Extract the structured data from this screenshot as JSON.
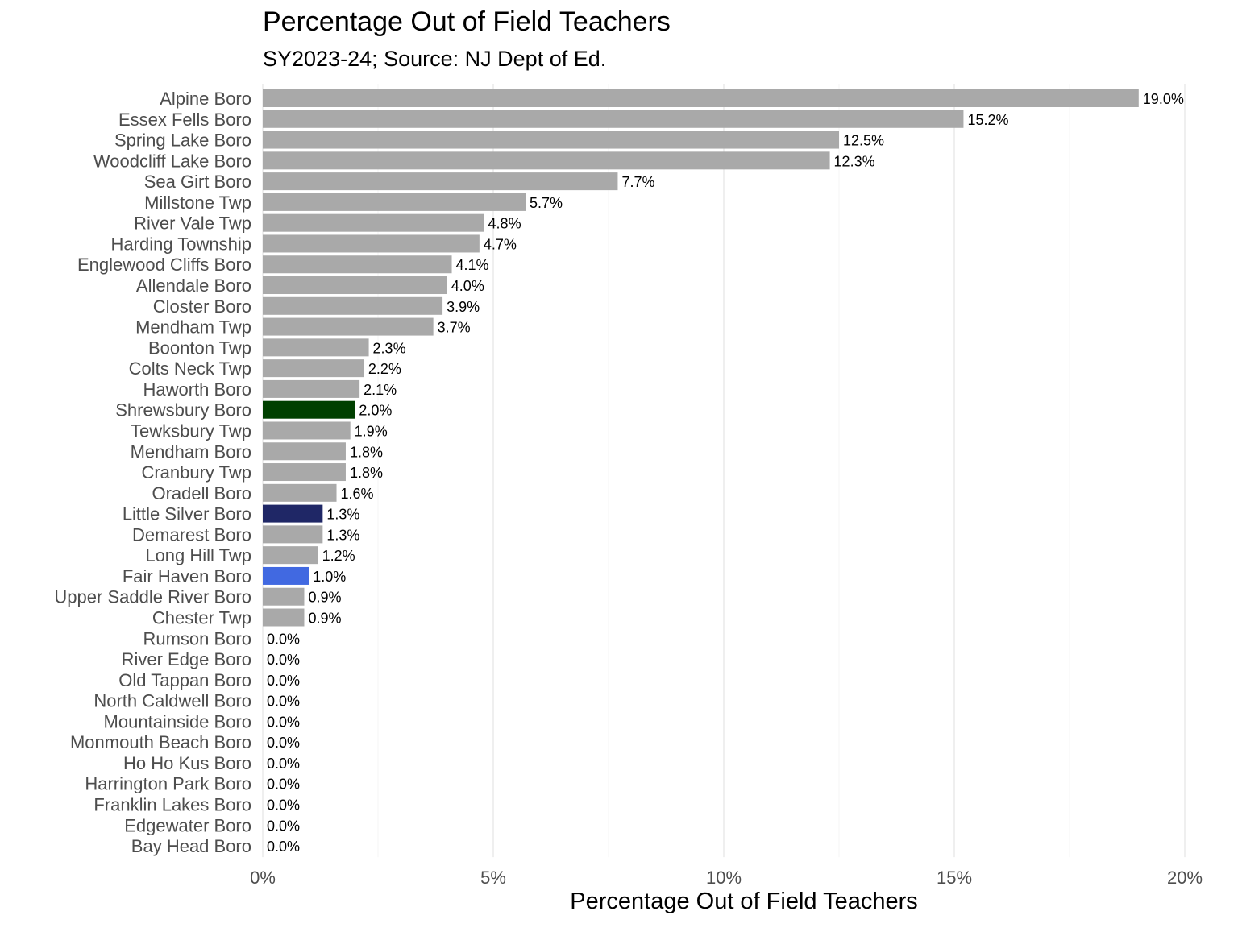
{
  "title": "Percentage Out of Field Teachers",
  "subtitle": "SY2023-24; Source: NJ Dept of Ed.",
  "colors": {
    "default_bar": "#a9a9a9",
    "gridline": "#ebebeb",
    "highlight_shrewsbury": "#004000",
    "highlight_little_silver": "#1f2766",
    "highlight_fair_haven": "#4169e1"
  },
  "chart_data": {
    "type": "bar",
    "orientation": "horizontal",
    "title": "Percentage Out of Field Teachers",
    "subtitle": "SY2023-24; Source: NJ Dept of Ed.",
    "xlabel": "Percentage Out of Field Teachers",
    "ylabel": "",
    "xlim": [
      0,
      20
    ],
    "x_ticks": [
      "0%",
      "5%",
      "10%",
      "15%",
      "20%"
    ],
    "x_tick_values": [
      0,
      5,
      10,
      15,
      20
    ],
    "grid": "vertical",
    "categories": [
      "Alpine Boro",
      "Essex Fells Boro",
      "Spring Lake Boro",
      "Woodcliff Lake Boro",
      "Sea Girt Boro",
      "Millstone Twp",
      "River Vale Twp",
      "Harding Township",
      "Englewood Cliffs Boro",
      "Allendale Boro",
      "Closter Boro",
      "Mendham Twp",
      "Boonton Twp",
      "Colts Neck Twp",
      "Haworth Boro",
      "Shrewsbury Boro",
      "Tewksbury Twp",
      "Mendham Boro",
      "Cranbury Twp",
      "Oradell Boro",
      "Little Silver Boro",
      "Demarest Boro",
      "Long Hill Twp",
      "Fair Haven Boro",
      "Upper Saddle River Boro",
      "Chester Twp",
      "Rumson Boro",
      "River Edge Boro",
      "Old Tappan Boro",
      "North Caldwell Boro",
      "Mountainside Boro",
      "Monmouth Beach Boro",
      "Ho Ho Kus Boro",
      "Harrington Park Boro",
      "Franklin Lakes Boro",
      "Edgewater Boro",
      "Bay Head Boro"
    ],
    "values": [
      19.0,
      15.2,
      12.5,
      12.3,
      7.7,
      5.7,
      4.8,
      4.7,
      4.1,
      4.0,
      3.9,
      3.7,
      2.3,
      2.2,
      2.1,
      2.0,
      1.9,
      1.8,
      1.8,
      1.6,
      1.3,
      1.3,
      1.2,
      1.0,
      0.9,
      0.9,
      0.0,
      0.0,
      0.0,
      0.0,
      0.0,
      0.0,
      0.0,
      0.0,
      0.0,
      0.0,
      0.0
    ],
    "labels": [
      "19.0%",
      "15.2%",
      "12.5%",
      "12.3%",
      "7.7%",
      "5.7%",
      "4.8%",
      "4.7%",
      "4.1%",
      "4.0%",
      "3.9%",
      "3.7%",
      "2.3%",
      "2.2%",
      "2.1%",
      "2.0%",
      "1.9%",
      "1.8%",
      "1.8%",
      "1.6%",
      "1.3%",
      "1.3%",
      "1.2%",
      "1.0%",
      "0.9%",
      "0.9%",
      "0.0%",
      "0.0%",
      "0.0%",
      "0.0%",
      "0.0%",
      "0.0%",
      "0.0%",
      "0.0%",
      "0.0%",
      "0.0%",
      "0.0%"
    ],
    "bar_colors": [
      "#a9a9a9",
      "#a9a9a9",
      "#a9a9a9",
      "#a9a9a9",
      "#a9a9a9",
      "#a9a9a9",
      "#a9a9a9",
      "#a9a9a9",
      "#a9a9a9",
      "#a9a9a9",
      "#a9a9a9",
      "#a9a9a9",
      "#a9a9a9",
      "#a9a9a9",
      "#a9a9a9",
      "#004000",
      "#a9a9a9",
      "#a9a9a9",
      "#a9a9a9",
      "#a9a9a9",
      "#1f2766",
      "#a9a9a9",
      "#a9a9a9",
      "#4169e1",
      "#a9a9a9",
      "#a9a9a9",
      "#a9a9a9",
      "#a9a9a9",
      "#a9a9a9",
      "#a9a9a9",
      "#a9a9a9",
      "#a9a9a9",
      "#a9a9a9",
      "#a9a9a9",
      "#a9a9a9",
      "#a9a9a9",
      "#a9a9a9"
    ]
  }
}
